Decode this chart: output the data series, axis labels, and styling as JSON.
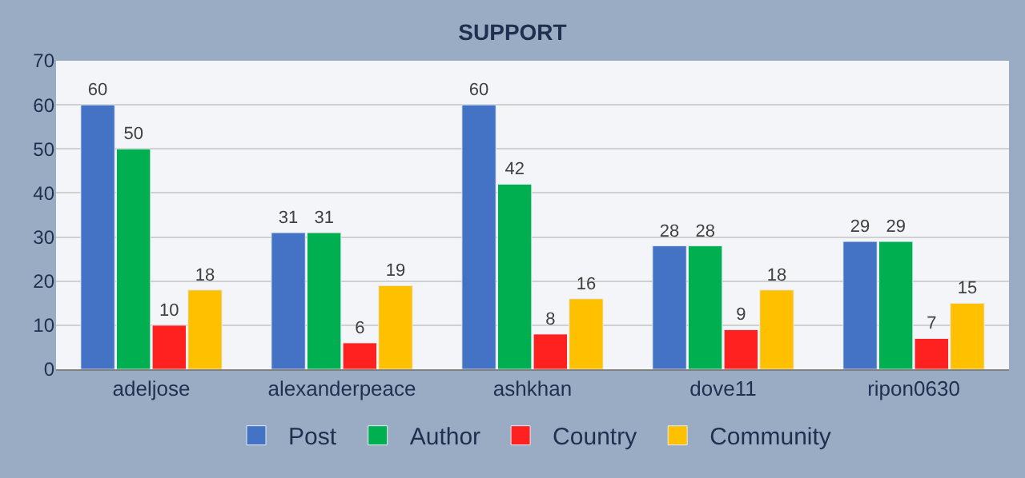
{
  "chart_data": {
    "type": "bar",
    "title": "SUPPORT",
    "categories": [
      "adeljose",
      "alexanderpeace",
      "ashkhan",
      "dove11",
      "ripon0630"
    ],
    "series": [
      {
        "name": "Post",
        "color": "#4472c4",
        "values": [
          60,
          31,
          60,
          28,
          29
        ]
      },
      {
        "name": "Author",
        "color": "#00b050",
        "values": [
          50,
          31,
          42,
          28,
          29
        ]
      },
      {
        "name": "Country",
        "color": "#ff2020",
        "values": [
          10,
          6,
          8,
          9,
          7
        ]
      },
      {
        "name": "Community",
        "color": "#ffc000",
        "values": [
          18,
          19,
          16,
          18,
          15
        ]
      }
    ],
    "ylim": [
      0,
      70
    ],
    "yticks": [
      0,
      10,
      20,
      30,
      40,
      50,
      60,
      70
    ],
    "grid": "y",
    "legend": "bottom",
    "data_labels": true
  }
}
